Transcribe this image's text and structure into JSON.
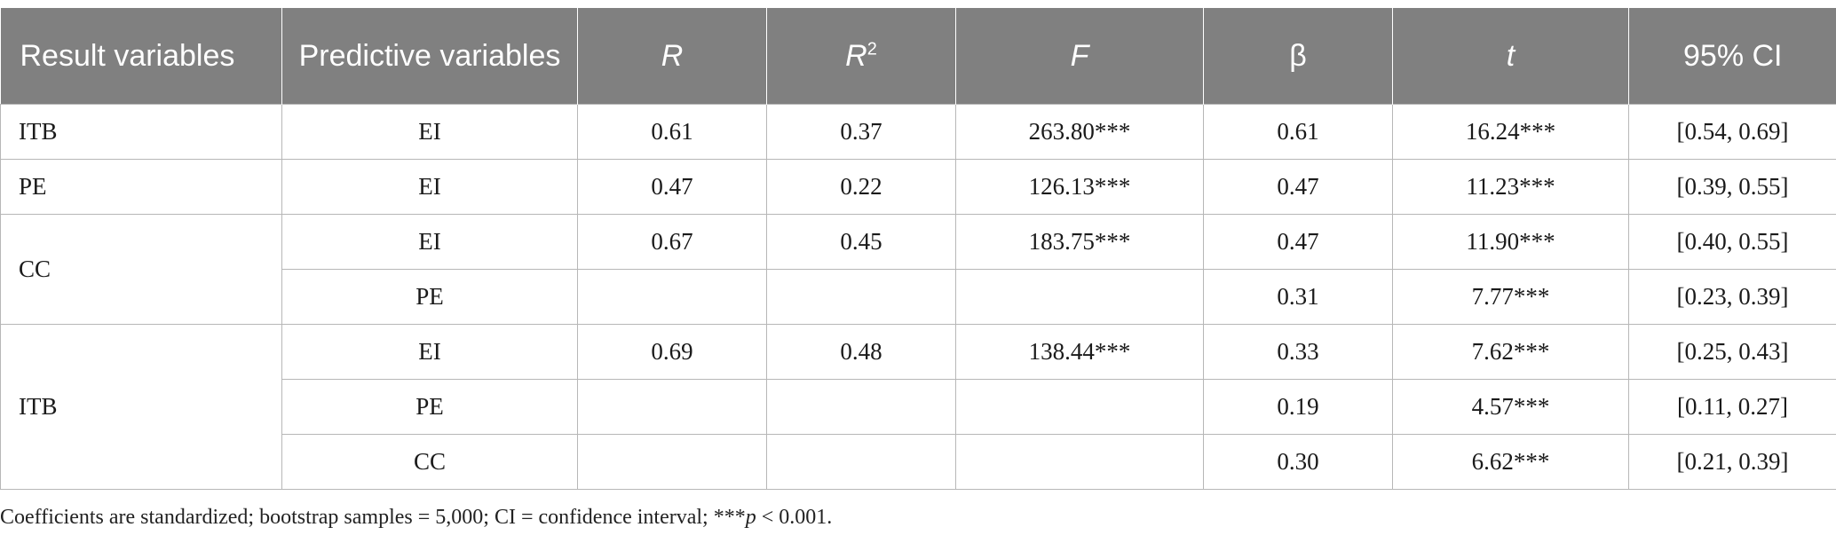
{
  "headers": {
    "result_variables": "Result variables",
    "predictive_variables": "Predictive variables",
    "r": "R",
    "r2_base": "R",
    "r2_exp": "2",
    "f": "F",
    "beta": "β",
    "t": "t",
    "ci": "95% CI"
  },
  "rows": [
    {
      "result": "ITB",
      "predictor": "EI",
      "r": "0.61",
      "r2": "0.37",
      "f": "263.80***",
      "beta": "0.61",
      "t": "16.24***",
      "ci": "[0.54, 0.69]"
    },
    {
      "result": "PE",
      "predictor": "EI",
      "r": "0.47",
      "r2": "0.22",
      "f": "126.13***",
      "beta": "0.47",
      "t": "11.23***",
      "ci": "[0.39, 0.55]"
    },
    {
      "result": "CC",
      "predictor": "EI",
      "r": "0.67",
      "r2": "0.45",
      "f": "183.75***",
      "beta": "0.47",
      "t": "11.90***",
      "ci": "[0.40, 0.55]"
    },
    {
      "result": "",
      "predictor": "PE",
      "r": "",
      "r2": "",
      "f": "",
      "beta": "0.31",
      "t": "7.77***",
      "ci": "[0.23, 0.39]"
    },
    {
      "result": "ITB",
      "predictor": "EI",
      "r": "0.69",
      "r2": "0.48",
      "f": "138.44***",
      "beta": "0.33",
      "t": "7.62***",
      "ci": "[0.25, 0.43]"
    },
    {
      "result": "",
      "predictor": "PE",
      "r": "",
      "r2": "",
      "f": "",
      "beta": "0.19",
      "t": "4.57***",
      "ci": "[0.11, 0.27]"
    },
    {
      "result": "",
      "predictor": "CC",
      "r": "",
      "r2": "",
      "f": "",
      "beta": "0.30",
      "t": "6.62***",
      "ci": "[0.21, 0.39]"
    }
  ],
  "footnote": {
    "before_p": "Coefficients are standardized; bootstrap samples = 5,000; CI = confidence interval; ***",
    "p": "p",
    "after_p": " < 0.001."
  },
  "colors": {
    "header_bg": "#808080",
    "header_text": "#ffffff",
    "grid_line": "#b7b7b7"
  }
}
